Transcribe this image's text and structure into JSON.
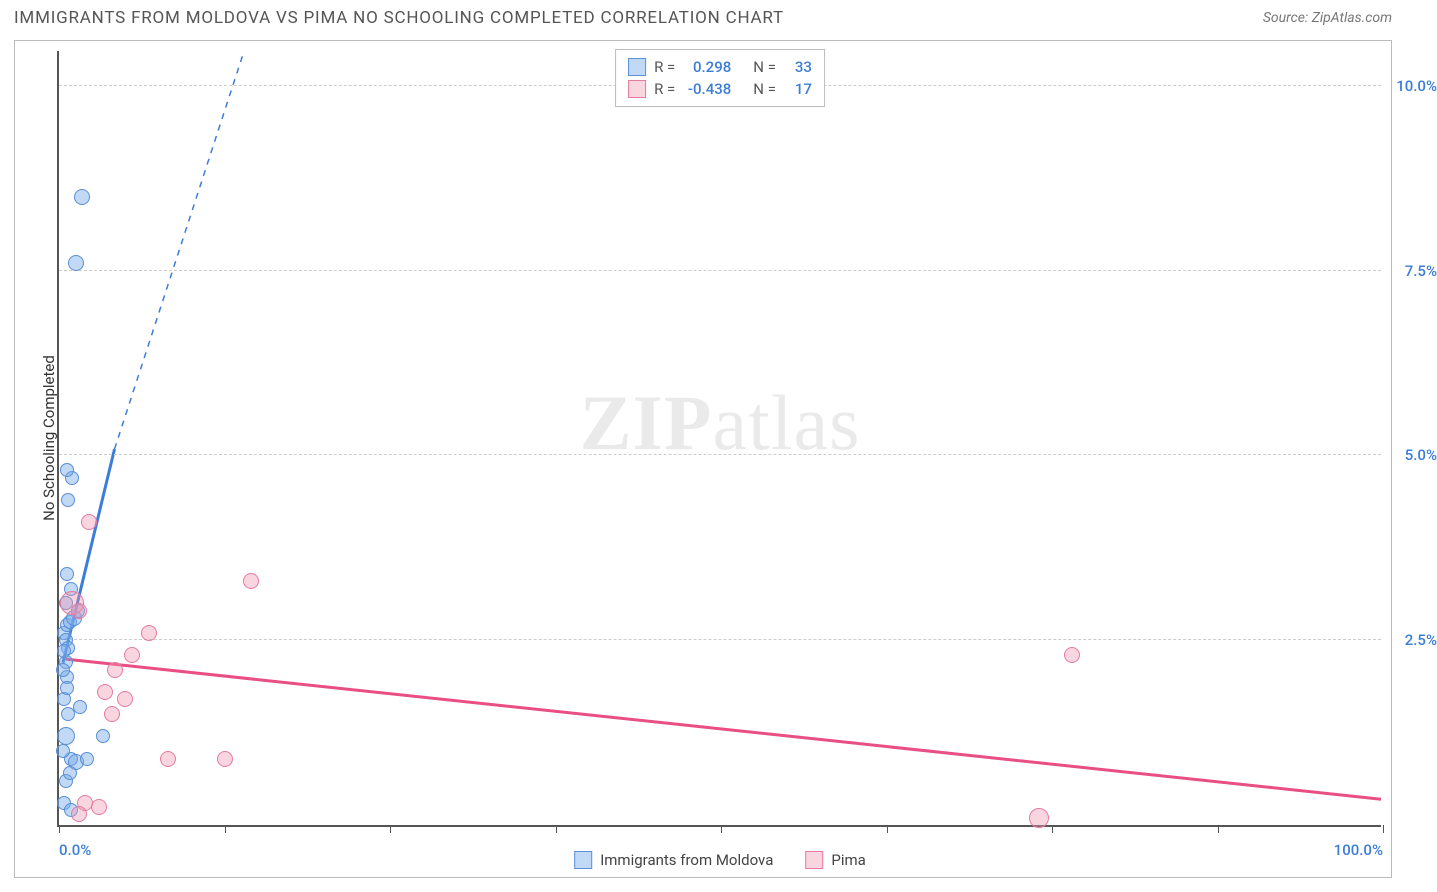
{
  "header": {
    "title": "IMMIGRANTS FROM MOLDOVA VS PIMA NO SCHOOLING COMPLETED CORRELATION CHART",
    "source": "Source: ZipAtlas.com"
  },
  "watermark": {
    "bold": "ZIP",
    "light": "atlas"
  },
  "chart": {
    "type": "scatter",
    "background_color": "#ffffff",
    "grid_color": "#cccccc",
    "axis_color": "#555555",
    "tick_label_color": "#3b7dd8",
    "y_label": "No Schooling Completed",
    "x_min": 0,
    "x_max": 100,
    "y_min": 0,
    "y_max": 10.5,
    "x_ticks": [
      0,
      12.5,
      25,
      37.5,
      50,
      62.5,
      75,
      87.5,
      100
    ],
    "x_tick_labels": {
      "0": "0.0%",
      "100": "100.0%"
    },
    "y_gridlines": [
      2.5,
      5.0,
      7.5,
      10.0
    ],
    "y_tick_labels": {
      "2.5": "2.5%",
      "5.0": "5.0%",
      "7.5": "7.5%",
      "10.0": "10.0%"
    },
    "series": [
      {
        "key": "moldova",
        "label": "Immigrants from Moldova",
        "R": "0.298",
        "N": "33",
        "color_fill": "rgba(120,170,235,0.45)",
        "color_stroke": "#5a8fd6",
        "trend_color": "#3b7dd8",
        "trend_solid": {
          "x1": 0.3,
          "y1": 2.2,
          "x2": 4.2,
          "y2": 5.1
        },
        "trend_dash": {
          "x1": 4.2,
          "y1": 5.1,
          "x2": 14.0,
          "y2": 10.5
        },
        "points": [
          {
            "x": 0.5,
            "y": 2.2,
            "r": 7
          },
          {
            "x": 0.6,
            "y": 2.0,
            "r": 7
          },
          {
            "x": 0.4,
            "y": 1.7,
            "r": 7
          },
          {
            "x": 0.7,
            "y": 1.5,
            "r": 7
          },
          {
            "x": 0.5,
            "y": 1.2,
            "r": 9
          },
          {
            "x": 0.9,
            "y": 0.9,
            "r": 7
          },
          {
            "x": 1.3,
            "y": 0.85,
            "r": 8
          },
          {
            "x": 2.1,
            "y": 0.9,
            "r": 7
          },
          {
            "x": 3.3,
            "y": 1.2,
            "r": 7
          },
          {
            "x": 0.4,
            "y": 2.6,
            "r": 7
          },
          {
            "x": 0.6,
            "y": 2.7,
            "r": 7
          },
          {
            "x": 0.5,
            "y": 2.5,
            "r": 7
          },
          {
            "x": 0.7,
            "y": 2.4,
            "r": 7
          },
          {
            "x": 0.3,
            "y": 2.1,
            "r": 7
          },
          {
            "x": 0.8,
            "y": 2.75,
            "r": 7
          },
          {
            "x": 1.1,
            "y": 2.8,
            "r": 8
          },
          {
            "x": 1.4,
            "y": 2.9,
            "r": 7
          },
          {
            "x": 0.9,
            "y": 3.2,
            "r": 7
          },
          {
            "x": 0.6,
            "y": 3.4,
            "r": 7
          },
          {
            "x": 0.7,
            "y": 4.4,
            "r": 7
          },
          {
            "x": 1.0,
            "y": 4.7,
            "r": 7
          },
          {
            "x": 0.6,
            "y": 4.8,
            "r": 7
          },
          {
            "x": 1.3,
            "y": 7.6,
            "r": 8
          },
          {
            "x": 1.7,
            "y": 8.5,
            "r": 8
          },
          {
            "x": 0.5,
            "y": 0.6,
            "r": 7
          },
          {
            "x": 0.8,
            "y": 0.7,
            "r": 7
          },
          {
            "x": 0.3,
            "y": 1.0,
            "r": 7
          },
          {
            "x": 0.4,
            "y": 0.3,
            "r": 7
          },
          {
            "x": 0.9,
            "y": 0.2,
            "r": 7
          },
          {
            "x": 1.6,
            "y": 1.6,
            "r": 7
          },
          {
            "x": 0.6,
            "y": 1.85,
            "r": 7
          },
          {
            "x": 0.35,
            "y": 2.35,
            "r": 7
          },
          {
            "x": 0.55,
            "y": 3.0,
            "r": 7
          }
        ]
      },
      {
        "key": "pima",
        "label": "Pima",
        "R": "-0.438",
        "N": "17",
        "color_fill": "rgba(240,150,175,0.40)",
        "color_stroke": "#e57ba0",
        "trend_color": "#e94e84",
        "trend_solid": {
          "x1": 0.5,
          "y1": 2.25,
          "x2": 100,
          "y2": 0.35
        },
        "trend_dash": null,
        "points": [
          {
            "x": 1.0,
            "y": 3.0,
            "r": 12
          },
          {
            "x": 1.5,
            "y": 2.9,
            "r": 8
          },
          {
            "x": 2.3,
            "y": 4.1,
            "r": 8
          },
          {
            "x": 3.5,
            "y": 1.8,
            "r": 8
          },
          {
            "x": 4.0,
            "y": 1.5,
            "r": 8
          },
          {
            "x": 5.0,
            "y": 1.7,
            "r": 8
          },
          {
            "x": 6.8,
            "y": 2.6,
            "r": 8
          },
          {
            "x": 5.5,
            "y": 2.3,
            "r": 8
          },
          {
            "x": 8.2,
            "y": 0.9,
            "r": 8
          },
          {
            "x": 12.5,
            "y": 0.9,
            "r": 8
          },
          {
            "x": 14.5,
            "y": 3.3,
            "r": 8
          },
          {
            "x": 2.0,
            "y": 0.3,
            "r": 8
          },
          {
            "x": 3.0,
            "y": 0.25,
            "r": 8
          },
          {
            "x": 1.5,
            "y": 0.15,
            "r": 8
          },
          {
            "x": 74.0,
            "y": 0.1,
            "r": 10
          },
          {
            "x": 76.5,
            "y": 2.3,
            "r": 8
          },
          {
            "x": 4.2,
            "y": 2.1,
            "r": 8
          }
        ]
      }
    ],
    "bottom_legend": [
      {
        "label": "Immigrants from Moldova",
        "fill": "rgba(120,170,235,0.45)",
        "stroke": "#5a8fd6"
      },
      {
        "label": "Pima",
        "fill": "rgba(240,150,175,0.40)",
        "stroke": "#e57ba0"
      }
    ],
    "top_legend_labels": {
      "R": "R =",
      "N": "N ="
    }
  }
}
